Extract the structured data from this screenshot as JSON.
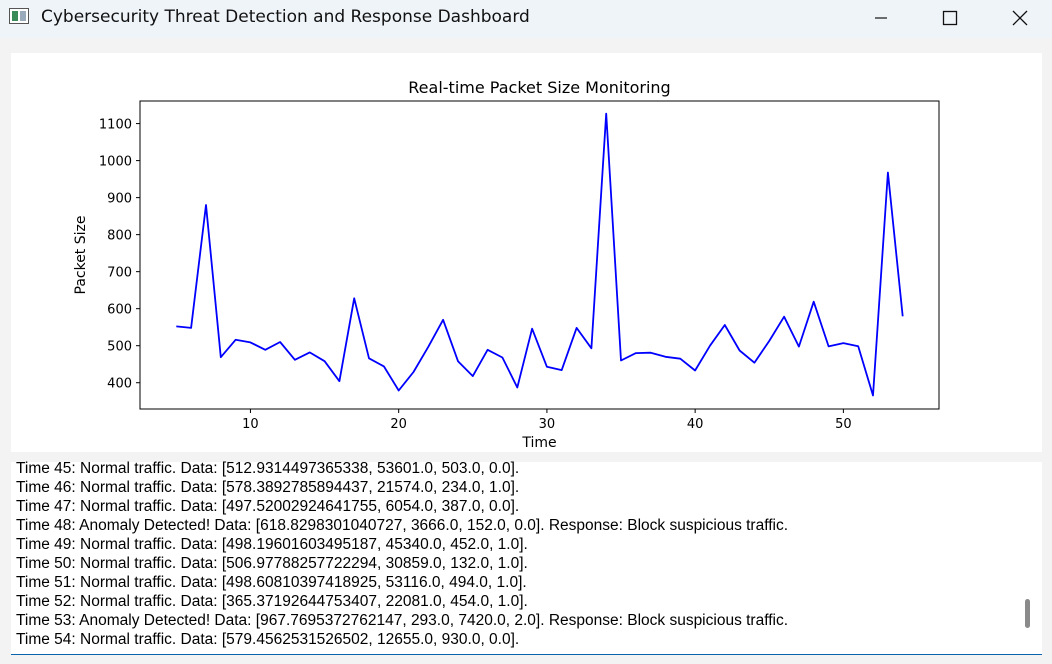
{
  "window": {
    "title": "Cybersecurity Threat Detection and Response Dashboard",
    "icon": "app-window-icon",
    "controls": [
      "minimize-icon",
      "maximize-icon",
      "close-icon"
    ]
  },
  "chart_data": {
    "type": "line",
    "title": "Real-time Packet Size Monitoring",
    "xlabel": "Time",
    "ylabel": "Packet Size",
    "xlim": [
      2.55,
      56.45
    ],
    "ylim": [
      329,
      1161
    ],
    "xticks": [
      10,
      20,
      30,
      40,
      50
    ],
    "yticks": [
      400,
      500,
      600,
      700,
      800,
      900,
      1000,
      1100
    ],
    "grid": false,
    "series": [
      {
        "color": "#0000ff",
        "x": [
          5,
          6,
          7,
          8,
          9,
          10,
          11,
          12,
          13,
          14,
          15,
          16,
          17,
          18,
          19,
          20,
          21,
          22,
          23,
          24,
          25,
          26,
          27,
          28,
          29,
          30,
          31,
          32,
          33,
          34,
          35,
          36,
          37,
          38,
          39,
          40,
          41,
          42,
          43,
          44,
          45,
          46,
          47,
          48,
          49,
          50,
          51,
          52,
          53,
          54
        ],
        "y": [
          552,
          548,
          880,
          469,
          516,
          509,
          489,
          510,
          462,
          482,
          458,
          404,
          628,
          466,
          444,
          379,
          429,
          497,
          570,
          458,
          418,
          489,
          468,
          387,
          546,
          443,
          434,
          548,
          493,
          1127,
          460,
          480,
          481,
          470,
          465,
          433,
          500,
          556,
          487,
          454,
          512.93,
          578.39,
          497.52,
          618.83,
          498.2,
          506.98,
          498.61,
          365.37,
          967.77,
          579.46
        ]
      }
    ]
  },
  "log": {
    "lines": [
      "Time 45: Normal traffic. Data: [512.9314497365338, 53601.0, 503.0, 0.0].",
      "Time 46: Normal traffic. Data: [578.3892785894437, 21574.0, 234.0, 1.0].",
      "Time 47: Normal traffic. Data: [497.52002924641755, 6054.0, 387.0, 0.0].",
      "Time 48: Anomaly Detected! Data: [618.8298301040727, 3666.0, 152.0, 0.0]. Response: Block suspicious traffic.",
      "Time 49: Normal traffic. Data: [498.19601603495187, 45340.0, 452.0, 1.0].",
      "Time 50: Normal traffic. Data: [506.97788257722294, 30859.0, 132.0, 1.0].",
      "Time 51: Normal traffic. Data: [498.60810397418925, 53116.0, 494.0, 1.0].",
      "Time 52: Normal traffic. Data: [365.37192644753407, 22081.0, 454.0, 1.0].",
      "Time 53: Anomaly Detected! Data: [967.7695372762147, 293.0, 7420.0, 2.0]. Response: Block suspicious traffic.",
      "Time 54: Normal traffic. Data: [579.4562531526502, 12655.0, 930.0, 0.0]."
    ]
  }
}
